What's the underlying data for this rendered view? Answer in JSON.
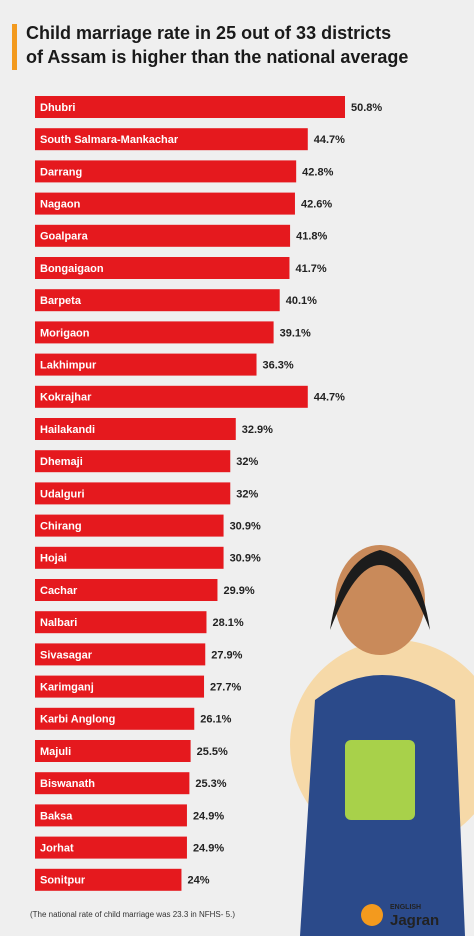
{
  "chart_data": {
    "type": "bar",
    "orientation": "horizontal",
    "title": "Child marriage rate in 25 out of 33 districts of Assam is higher than the national average",
    "categories": [
      "Dhubri",
      "South Salmara-Mankachar",
      "Darrang",
      "Nagaon",
      "Goalpara",
      "Bongaigaon",
      "Barpeta",
      "Morigaon",
      "Lakhimpur",
      "Kokrajhar",
      "Hailakandi",
      "Dhemaji",
      "Udalguri",
      "Chirang",
      "Hojai",
      "Cachar",
      "Nalbari",
      "Sivasagar",
      "Karimganj",
      "Karbi Anglong",
      "Majuli",
      "Biswanath",
      "Baksa",
      "Jorhat",
      "Sonitpur"
    ],
    "values": [
      50.8,
      44.7,
      42.8,
      42.6,
      41.8,
      41.7,
      40.1,
      39.1,
      36.3,
      44.7,
      32.9,
      32,
      32,
      30.9,
      30.9,
      29.9,
      28.1,
      27.9,
      27.7,
      26.1,
      25.5,
      25.3,
      24.9,
      24.9,
      24
    ],
    "value_labels": [
      "50.8%",
      "44.7%",
      "42.8%",
      "42.6%",
      "41.8%",
      "41.7%",
      "40.1%",
      "39.1%",
      "36.3%",
      "44.7%",
      "32.9%",
      "32%",
      "32%",
      "30.9%",
      "30.9%",
      "29.9%",
      "28.1%",
      "27.9%",
      "27.7%",
      "26.1%",
      "25.5%",
      "25.3%",
      "24.9%",
      "24.9%",
      "24%"
    ],
    "color": "#e5191e",
    "footnote": "(The national rate of child marriage was 23.3 in NFHS- 5.)"
  },
  "logo": {
    "small": "ENGLISH",
    "name": "Jagran"
  }
}
